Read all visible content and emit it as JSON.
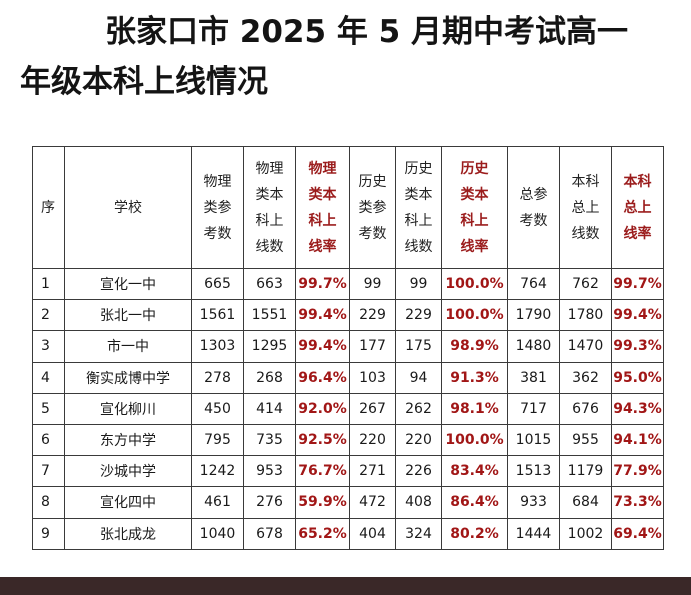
{
  "title": {
    "line1": "张家口市 2025 年 5 月期中考试高一",
    "line2": "年级本科上线情况"
  },
  "table": {
    "headers": [
      {
        "text": "序",
        "highlight": false
      },
      {
        "text": "学校",
        "highlight": false
      },
      {
        "text": "物理\n类参\n考数",
        "highlight": false
      },
      {
        "text": "物理\n类本\n科上\n线数",
        "highlight": false
      },
      {
        "text": "物理\n类本\n科上\n线率",
        "highlight": true
      },
      {
        "text": "历史\n类参\n考数",
        "highlight": false
      },
      {
        "text": "历史\n类本\n科上\n线数",
        "highlight": false
      },
      {
        "text": "历史\n类本\n科上\n线率",
        "highlight": true
      },
      {
        "text": "总参\n考数",
        "highlight": false
      },
      {
        "text": "本科\n总上\n线数",
        "highlight": false
      },
      {
        "text": "本科\n总上\n线率",
        "highlight": true
      }
    ],
    "rows": [
      [
        "1",
        "宣化一中",
        "665",
        "663",
        "99.7%",
        "99",
        "99",
        "100.0%",
        "764",
        "762",
        "99.7%"
      ],
      [
        "2",
        "张北一中",
        "1561",
        "1551",
        "99.4%",
        "229",
        "229",
        "100.0%",
        "1790",
        "1780",
        "99.4%"
      ],
      [
        "3",
        "市一中",
        "1303",
        "1295",
        "99.4%",
        "177",
        "175",
        "98.9%",
        "1480",
        "1470",
        "99.3%"
      ],
      [
        "4",
        "衡实成博中学",
        "278",
        "268",
        "96.4%",
        "103",
        "94",
        "91.3%",
        "381",
        "362",
        "95.0%"
      ],
      [
        "5",
        "宣化柳川",
        "450",
        "414",
        "92.0%",
        "267",
        "262",
        "98.1%",
        "717",
        "676",
        "94.3%"
      ],
      [
        "6",
        "东方中学",
        "795",
        "735",
        "92.5%",
        "220",
        "220",
        "100.0%",
        "1015",
        "955",
        "94.1%"
      ],
      [
        "7",
        "沙城中学",
        "1242",
        "953",
        "76.7%",
        "271",
        "226",
        "83.4%",
        "1513",
        "1179",
        "77.9%"
      ],
      [
        "8",
        "宣化四中",
        "461",
        "276",
        "59.9%",
        "472",
        "408",
        "86.4%",
        "933",
        "684",
        "73.3%"
      ],
      [
        "9",
        "张北成龙",
        "1040",
        "678",
        "65.2%",
        "404",
        "324",
        "80.2%",
        "1444",
        "1002",
        "69.4%"
      ]
    ]
  },
  "colors": {
    "highlight_text": "#a11616",
    "bottom_bar": "#3a2828"
  }
}
